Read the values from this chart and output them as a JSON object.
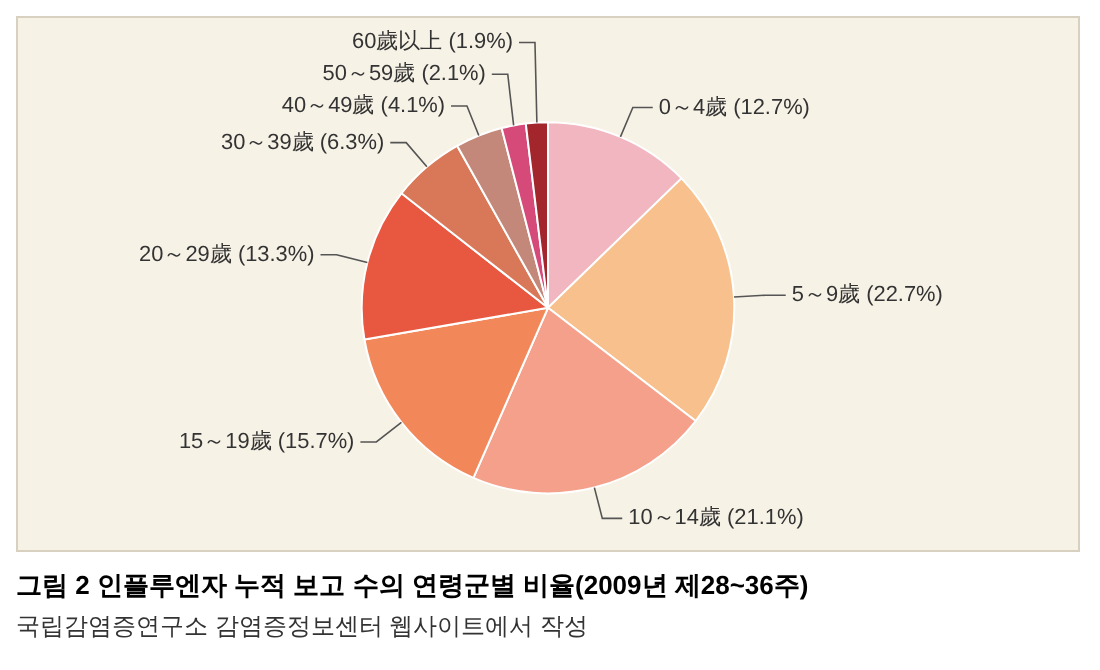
{
  "chart_data": {
    "type": "pie",
    "title": "그림 2 인플루엔자 누적 보고 수의 연령군별 비율(2009년 제28~36주)",
    "annotations": [
      "국립감염증연구소 감염증정보센터 웹사이트에서 작성"
    ],
    "categories": [
      "0～4歲",
      "5～9歲",
      "10～14歲",
      "15～19歲",
      "20～29歲",
      "30～39歲",
      "40～49歲",
      "50～59歲",
      "60歲以上"
    ],
    "values": [
      12.7,
      22.7,
      21.1,
      15.7,
      13.3,
      6.3,
      4.1,
      2.1,
      1.9
    ],
    "value_labels": [
      "(12.7%)",
      "(22.7%)",
      "(21.1%)",
      "(15.7%)",
      "(13.3%)",
      "(6.3%)",
      "(4.1%)",
      "(2.1%)",
      "(1.9%)"
    ],
    "colors": [
      "#f2b6c0",
      "#f8c08c",
      "#f4a08a",
      "#f2875a",
      "#e8573f",
      "#d97858",
      "#c4887a",
      "#d64a7a",
      "#a3262c"
    ],
    "legend": false
  }
}
